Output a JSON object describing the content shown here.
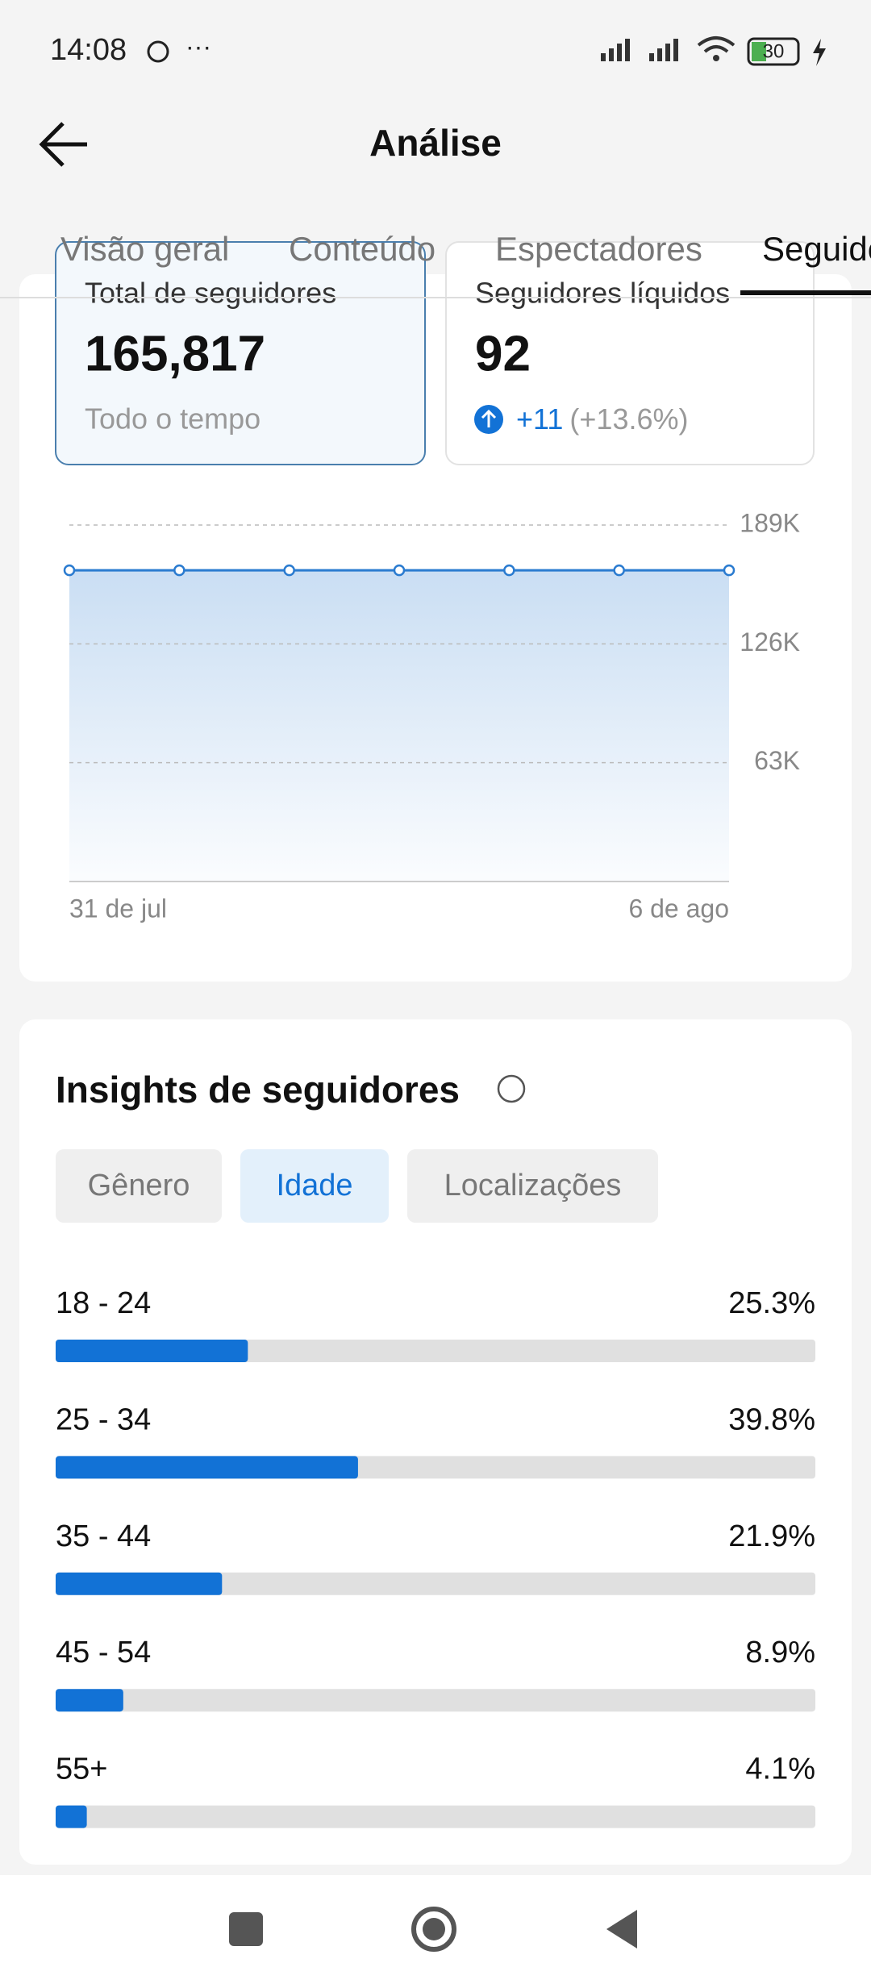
{
  "status_bar": {
    "time": "14:08",
    "battery": "30"
  },
  "header": {
    "title": "Análise"
  },
  "tabs": [
    "Visão geral",
    "Conteúdo",
    "Espectadores",
    "Seguidores"
  ],
  "cards": [
    {
      "label": "Total de seguidores",
      "value": "165,817",
      "sub": "Todo o tempo"
    },
    {
      "label": "Seguidores líquidos",
      "value": "92",
      "change": "+11",
      "change_pct": "(+13.6%)"
    }
  ],
  "chart_data": [
    {
      "type": "area",
      "categories": [
        "31 de jul",
        null,
        null,
        null,
        null,
        null,
        "6 de ago"
      ],
      "values": [
        165000,
        165000,
        165000,
        165000,
        165000,
        165000,
        165000
      ],
      "color": "#2a7bd0",
      "ylim": [
        0,
        189000
      ],
      "yticks": [
        {
          "value": 63000,
          "label": "63K"
        },
        {
          "value": 126000,
          "label": "126K"
        },
        {
          "value": 189000,
          "label": "189K"
        }
      ],
      "grid": true
    },
    {
      "type": "hbar",
      "title": "Insights de seguidores",
      "filters": [
        "Gênero",
        "Idade",
        "Localizações"
      ],
      "selected_filter": "Idade",
      "categories": [
        "18 - 24",
        "25 - 34",
        "35 - 44",
        "45 - 54",
        "55+"
      ],
      "values": [
        25.3,
        39.8,
        21.9,
        8.9,
        4.1
      ],
      "value_labels": [
        "25.3%",
        "39.8%",
        "21.9%",
        "8.9%",
        "4.1%"
      ],
      "xlim": [
        0,
        100
      ],
      "color": "#1272d6"
    }
  ]
}
